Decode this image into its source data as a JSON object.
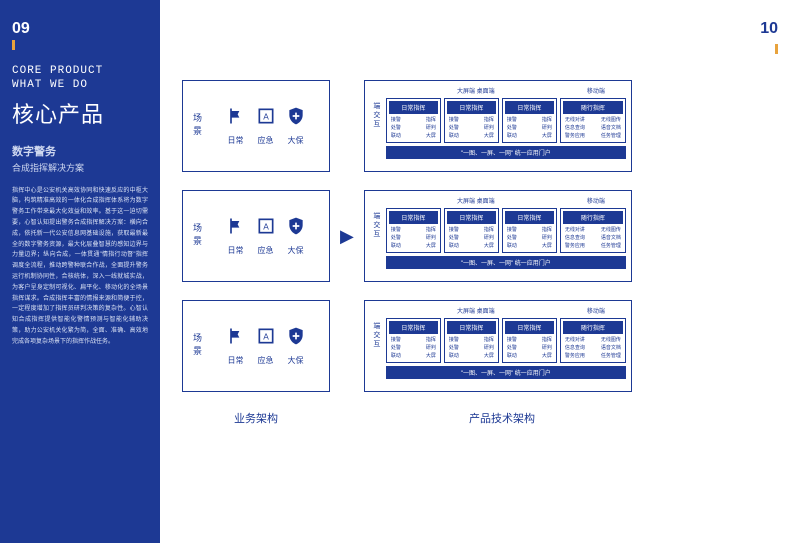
{
  "colors": {
    "primary": "#1d3994",
    "accent": "#e8a33d",
    "bg": "#ffffff"
  },
  "pageLeft": "09",
  "pageRight": "10",
  "engLine1": "CORE PRODUCT",
  "engLine2": "WHAT WE DO",
  "titleCn": "核心产品",
  "subtitle1": "数字警务",
  "subtitle2": "合成指挥解决方案",
  "bodyText": "指挥中心是公安机关高效协同和快速反应的中枢大脑，构筑精准高效的一体化合成指挥体系将为数字警务工作带来最大化效益和效率。基于这一迫切需要，心智认知提出警务合成指挥解决方案：横向合成，依托新一代公安信息网基础设施，获取最新最全的数字警务资源，最大化层叠智慧的感知边界与力量边界；纵向合成，一体贯通\"情指行动督\"指挥调度全流程，推动跨警种联合作战，全面提升警务运行机制协同性，合核统体，深入一线就城实战，为客户呈身定制可视化、扁平化、移动化的全场景指挥谋求。合成指挥丰富的情报来源和简便于控，一定程度增加了指挥员研判决策的复杂性。心智认知合成指挥提供智能化警情预测与智能化辅助决策，助力公安机关化繁为简，全面、准确、高效地完成各项复杂场景下的指挥作战任务。",
  "bizLabel": "场景",
  "bizIcons": [
    {
      "name": "flag-icon",
      "label": "日常"
    },
    {
      "name": "alert-icon",
      "label": "应急"
    },
    {
      "name": "shield-icon",
      "label": "大保"
    }
  ],
  "techSideLabel": "端交互",
  "topLabelA": "大屏端 桌面端",
  "topLabelB": "移动端",
  "smallCard": {
    "header": "日常指挥",
    "rows": [
      [
        "接警",
        "指挥"
      ],
      [
        "处警",
        "研判"
      ],
      [
        "联动",
        "大屏"
      ]
    ]
  },
  "largeCard": {
    "header": "随行指挥",
    "rows": [
      [
        "无线对讲",
        "无线图传"
      ],
      [
        "信息查询",
        "语音文档"
      ],
      [
        "警务应用",
        "任务管理"
      ]
    ]
  },
  "footerBar": "\"一图、一屏、一网\" 统一应用门户",
  "captionLeft": "业务架构",
  "captionRight": "产品技术架构"
}
